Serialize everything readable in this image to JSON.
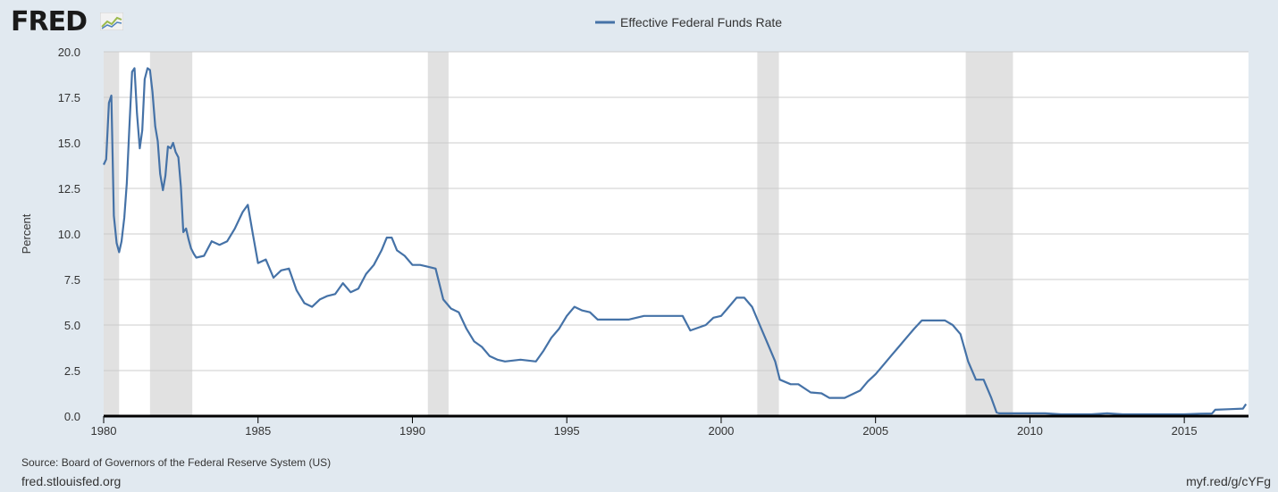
{
  "logo": {
    "text": "FRED"
  },
  "source": "Source: Board of Governors of the Federal Reserve System (US)",
  "site": "fred.stlouisfed.org",
  "shortlink": "myf.red/g/cYFg",
  "colors": {
    "background": "#e1e9f0",
    "plot_background": "#ffffff",
    "series": "#4572a7",
    "recession": "#e1e1e1",
    "grid": "#cccccc",
    "axis": "#000000"
  },
  "chart_data": {
    "type": "line",
    "title": "",
    "xlabel": "",
    "ylabel": "Percent",
    "xlim": [
      1980.0,
      2017.08
    ],
    "ylim": [
      0,
      20
    ],
    "grid": true,
    "legend_position": "top-center",
    "x_ticks": [
      {
        "value": 1980,
        "label": "1980"
      },
      {
        "value": 1985,
        "label": "1985"
      },
      {
        "value": 1990,
        "label": "1990"
      },
      {
        "value": 1995,
        "label": "1995"
      },
      {
        "value": 2000,
        "label": "2000"
      },
      {
        "value": 2005,
        "label": "2005"
      },
      {
        "value": 2010,
        "label": "2010"
      },
      {
        "value": 2015,
        "label": "2015"
      }
    ],
    "y_ticks": [
      {
        "value": 0,
        "label": "0.0"
      },
      {
        "value": 2.5,
        "label": "2.5"
      },
      {
        "value": 5,
        "label": "5.0"
      },
      {
        "value": 7.5,
        "label": "7.5"
      },
      {
        "value": 10,
        "label": "10.0"
      },
      {
        "value": 12.5,
        "label": "12.5"
      },
      {
        "value": 15,
        "label": "15.0"
      },
      {
        "value": 17.5,
        "label": "17.5"
      },
      {
        "value": 20,
        "label": "20.0"
      }
    ],
    "recessions": [
      [
        1980.0,
        1980.5
      ],
      [
        1981.5,
        1982.87
      ],
      [
        1990.5,
        1991.17
      ],
      [
        2001.17,
        2001.87
      ],
      [
        2007.92,
        2009.45
      ]
    ],
    "series": [
      {
        "name": "Effective Federal Funds Rate",
        "color": "#4572a7",
        "x": [
          1980.0,
          1980.08,
          1980.17,
          1980.25,
          1980.33,
          1980.42,
          1980.5,
          1980.58,
          1980.67,
          1980.75,
          1980.83,
          1980.92,
          1981.0,
          1981.08,
          1981.17,
          1981.25,
          1981.33,
          1981.42,
          1981.5,
          1981.58,
          1981.67,
          1981.75,
          1981.83,
          1981.92,
          1982.0,
          1982.08,
          1982.17,
          1982.25,
          1982.33,
          1982.42,
          1982.5,
          1982.58,
          1982.67,
          1982.75,
          1982.83,
          1982.92,
          1983.0,
          1983.25,
          1983.5,
          1983.75,
          1984.0,
          1984.25,
          1984.5,
          1984.67,
          1984.83,
          1985.0,
          1985.25,
          1985.5,
          1985.75,
          1986.0,
          1986.25,
          1986.5,
          1986.75,
          1987.0,
          1987.25,
          1987.5,
          1987.75,
          1988.0,
          1988.25,
          1988.5,
          1988.75,
          1989.0,
          1989.17,
          1989.33,
          1989.5,
          1989.75,
          1990.0,
          1990.25,
          1990.5,
          1990.75,
          1991.0,
          1991.25,
          1991.5,
          1991.75,
          1992.0,
          1992.25,
          1992.5,
          1992.75,
          1993.0,
          1993.5,
          1994.0,
          1994.25,
          1994.5,
          1994.75,
          1995.0,
          1995.25,
          1995.5,
          1995.75,
          1996.0,
          1996.5,
          1997.0,
          1997.5,
          1998.0,
          1998.5,
          1998.75,
          1999.0,
          1999.5,
          1999.75,
          2000.0,
          2000.25,
          2000.5,
          2000.75,
          2001.0,
          2001.25,
          2001.5,
          2001.75,
          2001.9,
          2002.25,
          2002.5,
          2002.9,
          2003.25,
          2003.5,
          2003.75,
          2004.0,
          2004.5,
          2004.75,
          2005.0,
          2005.25,
          2005.5,
          2005.75,
          2006.0,
          2006.25,
          2006.5,
          2006.75,
          2007.0,
          2007.25,
          2007.5,
          2007.75,
          2008.0,
          2008.25,
          2008.5,
          2008.75,
          2008.92,
          2009.0,
          2009.5,
          2010.0,
          2010.5,
          2011.0,
          2011.5,
          2012.0,
          2012.5,
          2013.0,
          2013.5,
          2014.0,
          2014.5,
          2015.0,
          2015.5,
          2015.9,
          2016.0,
          2016.5,
          2016.9,
          2017.0
        ],
        "values": [
          13.8,
          14.1,
          17.2,
          17.6,
          11.0,
          9.5,
          9.0,
          9.6,
          10.9,
          12.8,
          15.8,
          18.9,
          19.1,
          16.6,
          14.7,
          15.7,
          18.5,
          19.1,
          19.0,
          17.8,
          15.9,
          15.1,
          13.3,
          12.4,
          13.2,
          14.8,
          14.7,
          15.0,
          14.5,
          14.2,
          12.6,
          10.1,
          10.3,
          9.7,
          9.2,
          8.9,
          8.7,
          8.8,
          9.6,
          9.4,
          9.6,
          10.3,
          11.2,
          11.6,
          10.0,
          8.4,
          8.6,
          7.6,
          8.0,
          8.1,
          6.9,
          6.2,
          6.0,
          6.4,
          6.6,
          6.7,
          7.3,
          6.8,
          7.0,
          7.8,
          8.3,
          9.1,
          9.8,
          9.8,
          9.1,
          8.8,
          8.3,
          8.3,
          8.2,
          8.1,
          6.4,
          5.9,
          5.7,
          4.8,
          4.1,
          3.8,
          3.3,
          3.1,
          3.0,
          3.1,
          3.0,
          3.6,
          4.3,
          4.8,
          5.5,
          6.0,
          5.8,
          5.7,
          5.3,
          5.3,
          5.3,
          5.5,
          5.5,
          5.5,
          5.5,
          4.7,
          5.0,
          5.4,
          5.5,
          6.0,
          6.5,
          6.5,
          6.0,
          5.0,
          4.0,
          3.0,
          2.0,
          1.75,
          1.75,
          1.3,
          1.25,
          1.0,
          1.0,
          1.0,
          1.4,
          1.9,
          2.3,
          2.8,
          3.3,
          3.8,
          4.3,
          4.8,
          5.25,
          5.25,
          5.25,
          5.25,
          5.0,
          4.5,
          3.0,
          2.0,
          2.0,
          1.0,
          0.2,
          0.15,
          0.15,
          0.15,
          0.15,
          0.1,
          0.1,
          0.1,
          0.15,
          0.1,
          0.1,
          0.1,
          0.1,
          0.1,
          0.13,
          0.14,
          0.35,
          0.38,
          0.41,
          0.66
        ]
      }
    ]
  }
}
